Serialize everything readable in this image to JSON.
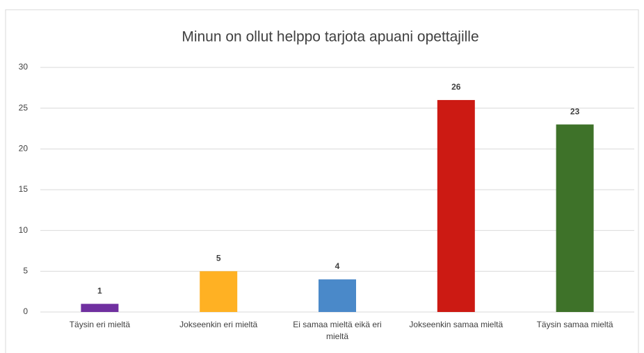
{
  "chart_data": {
    "type": "bar",
    "title": "Minun on ollut helppo tarjota apuani opettajille",
    "categories": [
      "Täysin eri mieltä",
      "Jokseenkin eri mieltä",
      "Ei samaa mieltä eikä eri mieltä",
      "Jokseenkin samaa mieltä",
      "Täysin samaa mieltä"
    ],
    "values": [
      1,
      5,
      4,
      26,
      23
    ],
    "colors": [
      "#7030a0",
      "#ffb123",
      "#4a89c9",
      "#cc1a13",
      "#3e7229"
    ],
    "ylim": [
      0,
      30
    ],
    "yticks": [
      0,
      5,
      10,
      15,
      20,
      25,
      30
    ],
    "grid": true
  }
}
